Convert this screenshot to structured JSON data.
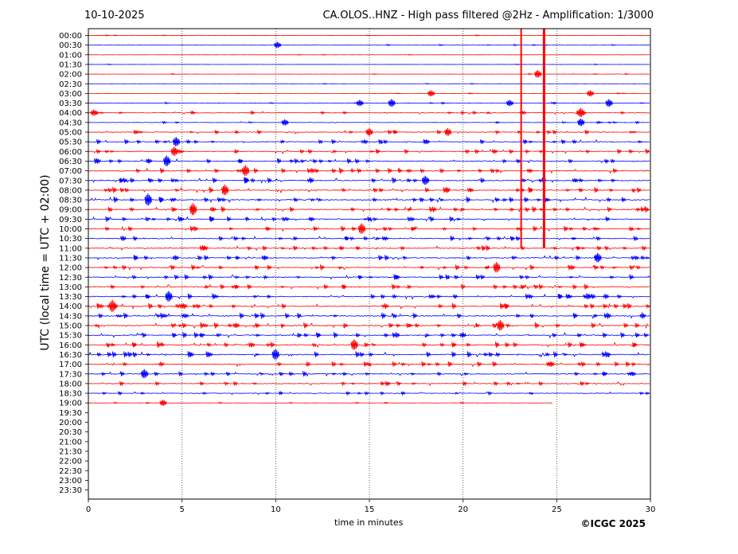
{
  "header": {
    "date": "10-10-2025",
    "station_title": "CA.OLOS..HNZ - High pass filtered @2Hz - Amplification: 1/3000"
  },
  "credit": "©ICGC 2025",
  "chart_data": {
    "type": "line",
    "title": "CA.OLOS..HNZ - High pass filtered @2Hz - Amplification: 1/3000",
    "xlabel": "time in minutes",
    "ylabel": "UTC (local time = UTC + 02:00)",
    "xlim": [
      0,
      30
    ],
    "x_ticks": [
      0,
      5,
      10,
      15,
      20,
      25,
      30
    ],
    "grid": "vertical dotted lines at 5, 10, 15, 20, 25 minutes",
    "row_labels": [
      "00:00",
      "00:30",
      "01:00",
      "01:30",
      "02:00",
      "02:30",
      "03:00",
      "03:30",
      "04:00",
      "04:30",
      "05:00",
      "05:30",
      "06:00",
      "06:30",
      "07:00",
      "07:30",
      "08:00",
      "08:30",
      "09:00",
      "09:30",
      "10:00",
      "10:30",
      "11:00",
      "11:30",
      "12:00",
      "12:30",
      "13:00",
      "13:30",
      "14:00",
      "14:30",
      "15:00",
      "15:30",
      "16:00",
      "16:30",
      "17:00",
      "17:30",
      "18:00",
      "18:30",
      "19:00",
      "19:30",
      "20:00",
      "20:30",
      "21:00",
      "21:30",
      "22:00",
      "22:30",
      "23:00",
      "23:30"
    ],
    "trace_colors": [
      "#ff0000",
      "#0000ff"
    ],
    "data_rows": 39,
    "last_row_end_minute": 24.8,
    "row_activity": [
      0.15,
      0.2,
      0.1,
      0.1,
      0.15,
      0.1,
      0.15,
      0.3,
      0.5,
      0.3,
      0.6,
      0.7,
      0.7,
      0.75,
      0.85,
      0.85,
      0.85,
      0.85,
      0.85,
      0.75,
      0.75,
      0.75,
      0.75,
      0.75,
      0.75,
      0.75,
      0.75,
      0.85,
      0.85,
      0.85,
      0.85,
      0.85,
      0.85,
      0.85,
      0.75,
      0.75,
      0.6,
      0.5,
      0.2
    ],
    "notable_events": [
      {
        "row": "00:30",
        "minute": 10.1,
        "amplitude": 4
      },
      {
        "row": "02:00",
        "minute": 24.0,
        "amplitude": 5
      },
      {
        "row": "03:00",
        "minute": 18.3,
        "amplitude": 4
      },
      {
        "row": "03:00",
        "minute": 26.8,
        "amplitude": 4
      },
      {
        "row": "03:30",
        "minute": 14.5,
        "amplitude": 4
      },
      {
        "row": "03:30",
        "minute": 16.2,
        "amplitude": 5
      },
      {
        "row": "03:30",
        "minute": 22.5,
        "amplitude": 4
      },
      {
        "row": "03:30",
        "minute": 27.8,
        "amplitude": 5
      },
      {
        "row": "04:00",
        "minute": 0.3,
        "amplitude": 4
      },
      {
        "row": "04:00",
        "minute": 26.3,
        "amplitude": 6
      },
      {
        "row": "04:30",
        "minute": 10.5,
        "amplitude": 4
      },
      {
        "row": "04:30",
        "minute": 26.3,
        "amplitude": 5
      },
      {
        "row": "05:00",
        "minute": 15.0,
        "amplitude": 5
      },
      {
        "row": "05:00",
        "minute": 19.2,
        "amplitude": 5
      },
      {
        "row": "05:30",
        "minute": 4.7,
        "amplitude": 6
      },
      {
        "row": "06:00",
        "minute": 4.6,
        "amplitude": 6
      },
      {
        "row": "06:30",
        "minute": 4.2,
        "amplitude": 7
      },
      {
        "row": "07:00",
        "minute": 8.4,
        "amplitude": 7
      },
      {
        "row": "07:30",
        "minute": 18.0,
        "amplitude": 6
      },
      {
        "row": "08:00",
        "minute": 7.3,
        "amplitude": 7
      },
      {
        "row": "08:30",
        "minute": 3.2,
        "amplitude": 8
      },
      {
        "row": "09:00",
        "minute": 5.6,
        "amplitude": 8
      },
      {
        "row": "10:00",
        "minute": 14.6,
        "amplitude": 7
      },
      {
        "row": "11:30",
        "minute": 27.2,
        "amplitude": 6
      },
      {
        "row": "12:00",
        "minute": 21.8,
        "amplitude": 7
      },
      {
        "row": "13:30",
        "minute": 4.3,
        "amplitude": 7
      },
      {
        "row": "14:00",
        "minute": 1.3,
        "amplitude": 8
      },
      {
        "row": "15:00",
        "minute": 22.0,
        "amplitude": 7
      },
      {
        "row": "16:00",
        "minute": 14.2,
        "amplitude": 7
      },
      {
        "row": "16:30",
        "minute": 10.0,
        "amplitude": 7
      },
      {
        "row": "17:30",
        "minute": 3.0,
        "amplitude": 6
      },
      {
        "row": "19:00",
        "minute": 4.0,
        "amplitude": 4
      }
    ],
    "large_event": {
      "start_row": "00:00",
      "end_row": "11:00",
      "minutes": [
        23.1,
        24.3
      ],
      "color": "#ff0000"
    }
  }
}
